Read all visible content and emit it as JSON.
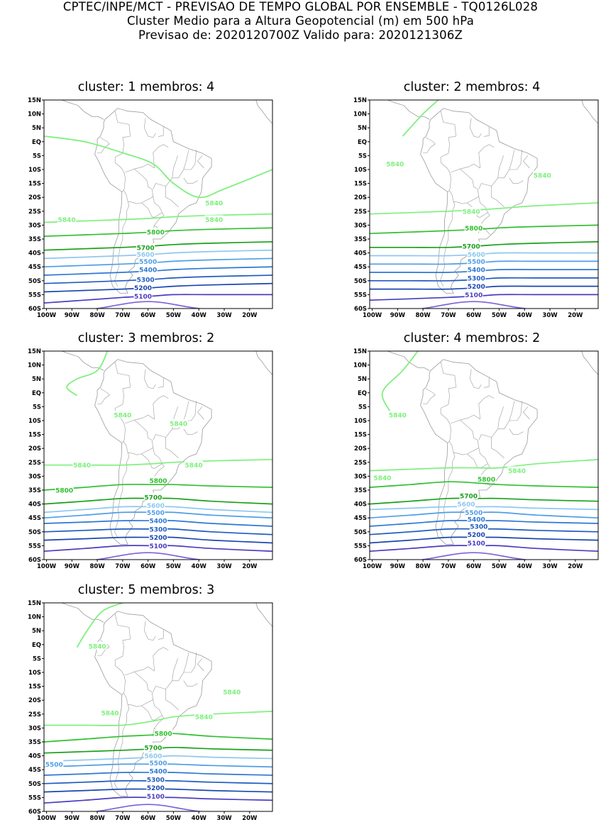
{
  "header": {
    "line1": "CPTEC/INPE/MCT - PREVISAO DE TEMPO GLOBAL POR ENSEMBLE - TQ0126L028",
    "line2": "Cluster Medio para a Altura Geopotencial (m) em 500 hPa",
    "line3": "Previsao de: 2020120700Z    Valido para: 2020121306Z"
  },
  "axes": {
    "lat_labels": [
      "15N",
      "10N",
      "5N",
      "EQ",
      "5S",
      "10S",
      "15S",
      "20S",
      "25S",
      "30S",
      "35S",
      "40S",
      "45S",
      "50S",
      "55S",
      "60S"
    ],
    "lon_labels": [
      "100W",
      "90W",
      "80W",
      "70W",
      "60W",
      "50W",
      "40W",
      "30W",
      "20W"
    ]
  },
  "colors": {
    "5840": "#7ef07e",
    "5800": "#2fc02f",
    "5700": "#19a019",
    "5600": "#8ec8f0",
    "5500": "#4f9ee6",
    "5400": "#2d78d2",
    "5300": "#1f5cc0",
    "5200": "#1a46b0",
    "5100": "#4a3cc0",
    "5000": "#7d63d8",
    "coast": "#9a9a9a"
  },
  "panels": [
    {
      "title": "cluster: 1   membros: 4",
      "labels": [
        {
          "text": "5840",
          "lon": -92,
          "lat": -28
        },
        {
          "text": "5840",
          "lon": -34,
          "lat": -22
        },
        {
          "text": "5840",
          "lon": -34,
          "lat": -28
        },
        {
          "text": "5800",
          "lon": -57,
          "lat": -32.5
        },
        {
          "text": "5700",
          "lon": -61,
          "lat": -38
        },
        {
          "text": "5600",
          "lon": -61,
          "lat": -40.5
        },
        {
          "text": "5500",
          "lon": -60,
          "lat": -43
        },
        {
          "text": "5400",
          "lon": -60,
          "lat": -46
        },
        {
          "text": "5300",
          "lon": -61,
          "lat": -49.5
        },
        {
          "text": "5200",
          "lon": -62,
          "lat": -52.5
        },
        {
          "text": "5100",
          "lon": -62,
          "lat": -55.5
        }
      ],
      "contours": {
        "5840": [
          -29,
          -28,
          -27,
          -26
        ],
        "5800": [
          -34,
          -33,
          -32,
          -31
        ],
        "5700": [
          -39,
          -38,
          -37,
          -36
        ],
        "5600": [
          -42,
          -41,
          -40,
          -39
        ],
        "5500": [
          -45,
          -44,
          -43,
          -42
        ],
        "5400": [
          -48,
          -47,
          -46,
          -45
        ],
        "5300": [
          -51,
          -50,
          -49,
          -48
        ],
        "5200": [
          -54,
          -53,
          -52,
          -51
        ],
        "5100": [
          -58,
          -56,
          -55,
          -55
        ]
      }
    },
    {
      "title": "cluster: 2   membros: 4",
      "labels": [
        {
          "text": "5840",
          "lon": -91,
          "lat": -8
        },
        {
          "text": "5840",
          "lon": -33,
          "lat": -12
        },
        {
          "text": "5840",
          "lon": -61,
          "lat": -25
        },
        {
          "text": "5800",
          "lon": -60,
          "lat": -31
        },
        {
          "text": "5700",
          "lon": -61,
          "lat": -37.5
        },
        {
          "text": "5600",
          "lon": -59,
          "lat": -40.5
        },
        {
          "text": "5500",
          "lon": -59,
          "lat": -43
        },
        {
          "text": "5400",
          "lon": -59,
          "lat": -46
        },
        {
          "text": "5300",
          "lon": -59,
          "lat": -49
        },
        {
          "text": "5200",
          "lon": -59,
          "lat": -52
        },
        {
          "text": "5100",
          "lon": -60,
          "lat": -55
        }
      ],
      "contours": {
        "5840": [
          -26,
          -25,
          -24,
          -22
        ],
        "5800": [
          -33,
          -32,
          -31,
          -30
        ],
        "5700": [
          -38,
          -38,
          -37,
          -36
        ],
        "5600": [
          -41,
          -41,
          -40,
          -40
        ],
        "5500": [
          -44,
          -44,
          -43,
          -43
        ],
        "5400": [
          -47,
          -47,
          -46,
          -46
        ],
        "5300": [
          -50,
          -50,
          -49,
          -49
        ],
        "5200": [
          -53,
          -53,
          -52,
          -52
        ],
        "5100": [
          -57,
          -56,
          -55,
          -55
        ]
      }
    },
    {
      "title": "cluster: 3   membros: 2",
      "labels": [
        {
          "text": "5840",
          "lon": -70,
          "lat": -8
        },
        {
          "text": "5840",
          "lon": -48,
          "lat": -11
        },
        {
          "text": "5840",
          "lon": -86,
          "lat": -26
        },
        {
          "text": "5840",
          "lon": -42,
          "lat": -26
        },
        {
          "text": "5800",
          "lon": -93,
          "lat": -35
        },
        {
          "text": "5800",
          "lon": -56,
          "lat": -31.5
        },
        {
          "text": "5700",
          "lon": -58,
          "lat": -37.5
        },
        {
          "text": "5600",
          "lon": -57,
          "lat": -40.5
        },
        {
          "text": "5500",
          "lon": -57,
          "lat": -43
        },
        {
          "text": "5400",
          "lon": -56,
          "lat": -46
        },
        {
          "text": "5300",
          "lon": -56,
          "lat": -49
        },
        {
          "text": "5200",
          "lon": -56,
          "lat": -52
        },
        {
          "text": "5100",
          "lon": -56,
          "lat": -55
        }
      ],
      "contours": {
        "5840": [
          -26,
          -26,
          -25,
          -24
        ],
        "5800": [
          -35,
          -33,
          -33,
          -34
        ],
        "5700": [
          -40,
          -38,
          -38,
          -40
        ],
        "5600": [
          -43,
          -41,
          -41,
          -43
        ],
        "5500": [
          -45,
          -43,
          -43,
          -45
        ],
        "5400": [
          -47,
          -46,
          -46,
          -48
        ],
        "5300": [
          -50,
          -49,
          -49,
          -51
        ],
        "5200": [
          -53,
          -52,
          -52,
          -54
        ],
        "5100": [
          -57,
          -55,
          -55,
          -57
        ]
      }
    },
    {
      "title": "cluster: 4   membros: 2",
      "labels": [
        {
          "text": "5840",
          "lon": -90,
          "lat": -8
        },
        {
          "text": "5840",
          "lon": -96,
          "lat": -30.5
        },
        {
          "text": "5840",
          "lon": -43,
          "lat": -28
        },
        {
          "text": "5800",
          "lon": -55,
          "lat": -31
        },
        {
          "text": "5700",
          "lon": -62,
          "lat": -37
        },
        {
          "text": "5600",
          "lon": -63,
          "lat": -40
        },
        {
          "text": "5500",
          "lon": -60,
          "lat": -43
        },
        {
          "text": "5400",
          "lon": -59,
          "lat": -45.5
        },
        {
          "text": "5300",
          "lon": -58,
          "lat": -48
        },
        {
          "text": "5200",
          "lon": -59,
          "lat": -51
        },
        {
          "text": "5100",
          "lon": -59,
          "lat": -54
        }
      ],
      "contours": {
        "5840": [
          -28,
          -27,
          -27,
          -24
        ],
        "5800": [
          -34,
          -32,
          -33,
          -34
        ],
        "5700": [
          -40,
          -38,
          -38,
          -39
        ],
        "5600": [
          -42,
          -41,
          -41,
          -42
        ],
        "5500": [
          -45,
          -43,
          -43,
          -45
        ],
        "5400": [
          -48,
          -46,
          -46,
          -47
        ],
        "5300": [
          -51,
          -49,
          -49,
          -50
        ],
        "5200": [
          -54,
          -52,
          -52,
          -53
        ],
        "5100": [
          -57,
          -55,
          -55,
          -57
        ]
      }
    },
    {
      "title": "cluster: 5   membros: 3",
      "labels": [
        {
          "text": "5840",
          "lon": -80,
          "lat": -0.5
        },
        {
          "text": "5840",
          "lon": -27,
          "lat": -17
        },
        {
          "text": "5840",
          "lon": -75,
          "lat": -24.5
        },
        {
          "text": "5840",
          "lon": -38,
          "lat": -26
        },
        {
          "text": "5800",
          "lon": -54,
          "lat": -32
        },
        {
          "text": "5700",
          "lon": -58,
          "lat": -37
        },
        {
          "text": "5600",
          "lon": -58,
          "lat": -40
        },
        {
          "text": "5500",
          "lon": -97,
          "lat": -43
        },
        {
          "text": "5500",
          "lon": -56,
          "lat": -42.5
        },
        {
          "text": "5400",
          "lon": -56,
          "lat": -45.5
        },
        {
          "text": "5300",
          "lon": -57,
          "lat": -48.5
        },
        {
          "text": "5200",
          "lon": -57,
          "lat": -51.5
        },
        {
          "text": "5100",
          "lon": -57,
          "lat": -54.5
        }
      ],
      "contours": {
        "5840": [
          -29,
          -29,
          -26,
          -24
        ],
        "5800": [
          -35,
          -33,
          -32,
          -34
        ],
        "5700": [
          -39,
          -38,
          -37,
          -38
        ],
        "5600": [
          -42,
          -41,
          -40,
          -41
        ],
        "5500": [
          -44,
          -43,
          -43,
          -44
        ],
        "5400": [
          -47,
          -46,
          -46,
          -47
        ],
        "5300": [
          -50,
          -49,
          -49,
          -50
        ],
        "5200": [
          -53,
          -52,
          -52,
          -53
        ],
        "5100": [
          -57,
          -55,
          -55,
          -56
        ]
      }
    }
  ]
}
